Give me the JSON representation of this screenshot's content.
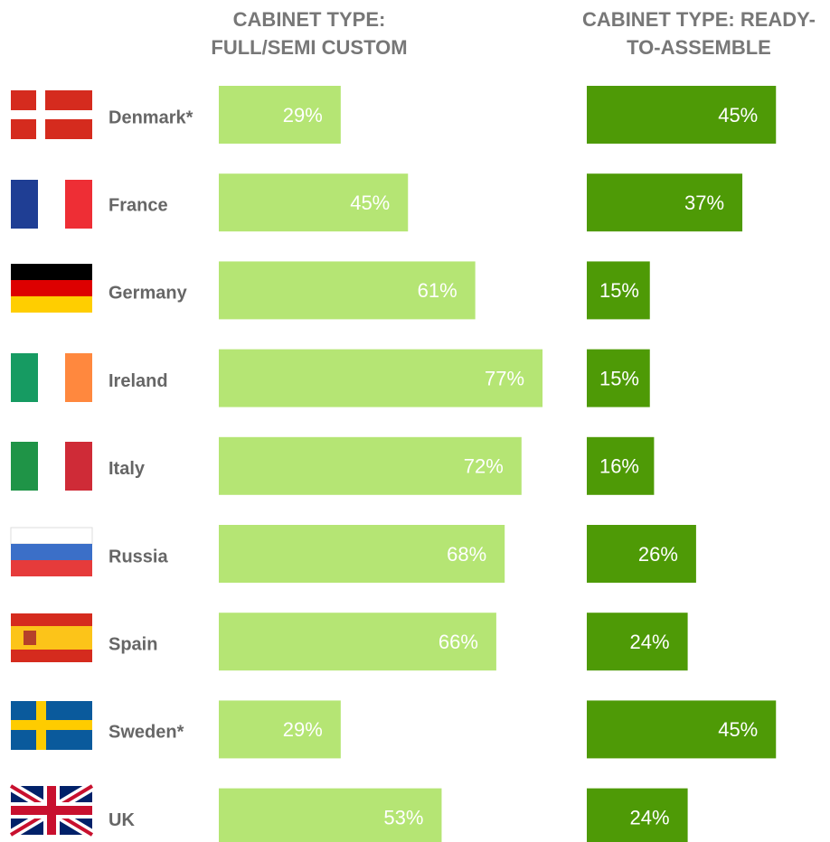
{
  "chart_data": {
    "type": "bar",
    "categories": [
      "Denmark*",
      "France",
      "Germany",
      "Ireland",
      "Italy",
      "Russia",
      "Spain",
      "Sweden*",
      "UK"
    ],
    "series": [
      {
        "name": "CABINET TYPE: FULL/SEMI CUSTOM",
        "color": "#b5e574",
        "values": [
          29,
          45,
          61,
          77,
          72,
          68,
          66,
          29,
          53
        ],
        "value_labels": [
          "29%",
          "45%",
          "61%",
          "77%",
          "72%",
          "68%",
          "66%",
          "29%",
          "53%"
        ]
      },
      {
        "name": "CABINET TYPE: READY-TO-ASSEMBLE",
        "color": "#4e9a06",
        "values": [
          45,
          37,
          15,
          15,
          16,
          26,
          24,
          45,
          24
        ],
        "value_labels": [
          "45%",
          "37%",
          "15%",
          "15%",
          "16%",
          "26%",
          "24%",
          "45%",
          "24%"
        ]
      }
    ]
  }
}
